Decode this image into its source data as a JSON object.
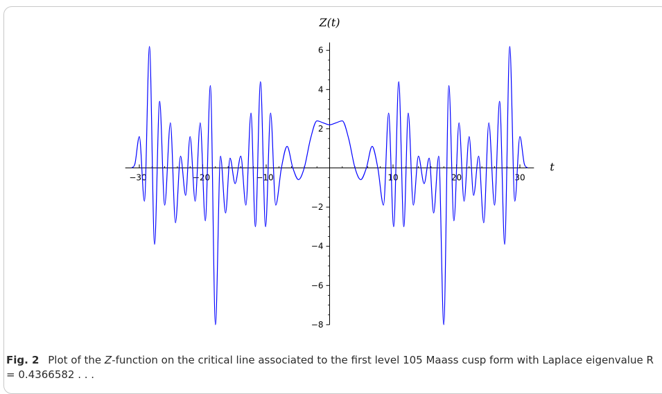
{
  "chart_data": {
    "type": "line",
    "xlabel": "t",
    "ylabel": "Z(t)",
    "xlim": [
      -32,
      32
    ],
    "ylim": [
      -8,
      6.4
    ],
    "x_ticks": [
      -30,
      -20,
      -10,
      10,
      20,
      30
    ],
    "y_ticks": [
      -8,
      -6,
      -4,
      -2,
      2,
      4,
      6
    ],
    "grid": false,
    "line_color": "#0000ff",
    "series": [
      {
        "x": [
          0,
          1,
          2,
          3,
          4,
          4.9,
          5.8,
          6.7,
          7.6,
          8.5,
          9.3,
          10.1,
          10.9,
          11.7,
          12.4,
          13.2,
          14.0,
          14.9,
          15.7,
          16.4,
          17.2,
          18.0,
          18.8,
          19.6,
          20.4,
          21.2,
          22.0,
          22.7,
          23.5,
          24.3,
          25.1,
          26.0,
          26.8,
          27.6,
          28.4,
          29.2,
          30.0,
          30.7,
          31.2
        ],
        "values": [
          2.2,
          2.3,
          2.4,
          1.5,
          0,
          -0.6,
          0.0,
          1.1,
          0,
          -1.9,
          2.8,
          -3.0,
          4.4,
          -3.0,
          2.8,
          -1.9,
          0.6,
          -0.8,
          0.5,
          -2.3,
          0.6,
          -8.0,
          4.2,
          -2.7,
          2.3,
          -1.7,
          1.6,
          -1.4,
          0.6,
          -2.8,
          2.3,
          -1.9,
          3.4,
          -3.9,
          6.2,
          -1.7,
          1.6,
          0.2,
          0
        ]
      }
    ]
  },
  "caption": {
    "label": "Fig. 2",
    "pre": "Plot of the ",
    "italic": "Z",
    "post": "-function on the critical line associated to the first level 105 Maass cusp form with Laplace eigenvalue ",
    "formula": "R = 0.4366582 . . ."
  }
}
